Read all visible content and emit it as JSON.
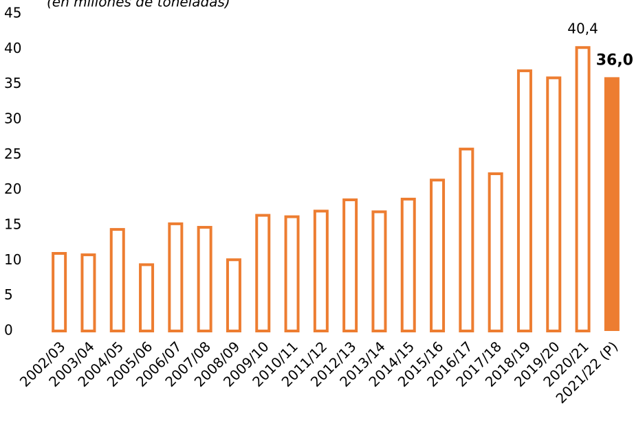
{
  "chart_data": {
    "type": "bar",
    "title": "(en millones de toneladas)",
    "categories": [
      "2002/03",
      "2003/04",
      "2004/05",
      "2005/06",
      "2006/07",
      "2007/08",
      "2008/09",
      "2009/10",
      "2010/11",
      "2011/12",
      "2012/13",
      "2013/14",
      "2014/15",
      "2015/16",
      "2016/17",
      "2017/18",
      "2018/19",
      "2019/20",
      "2020/21",
      "2021/22 (P)"
    ],
    "values": [
      11.2,
      11.0,
      14.6,
      9.6,
      15.4,
      14.9,
      10.3,
      16.6,
      16.4,
      17.2,
      18.8,
      17.1,
      18.9,
      21.6,
      26.0,
      22.5,
      37.1,
      36.1,
      40.4,
      36.0
    ],
    "value_labels": [
      null,
      null,
      null,
      null,
      null,
      null,
      null,
      null,
      null,
      null,
      null,
      null,
      null,
      null,
      null,
      null,
      null,
      null,
      "40,4",
      "36,0"
    ],
    "filled": [
      false,
      false,
      false,
      false,
      false,
      false,
      false,
      false,
      false,
      false,
      false,
      false,
      false,
      false,
      false,
      false,
      false,
      false,
      false,
      true
    ],
    "color": "#ed7d31",
    "ylim": [
      0,
      45
    ],
    "yticks": [
      0,
      5,
      10,
      15,
      20,
      25,
      30,
      35,
      40,
      45
    ],
    "grid": false
  }
}
